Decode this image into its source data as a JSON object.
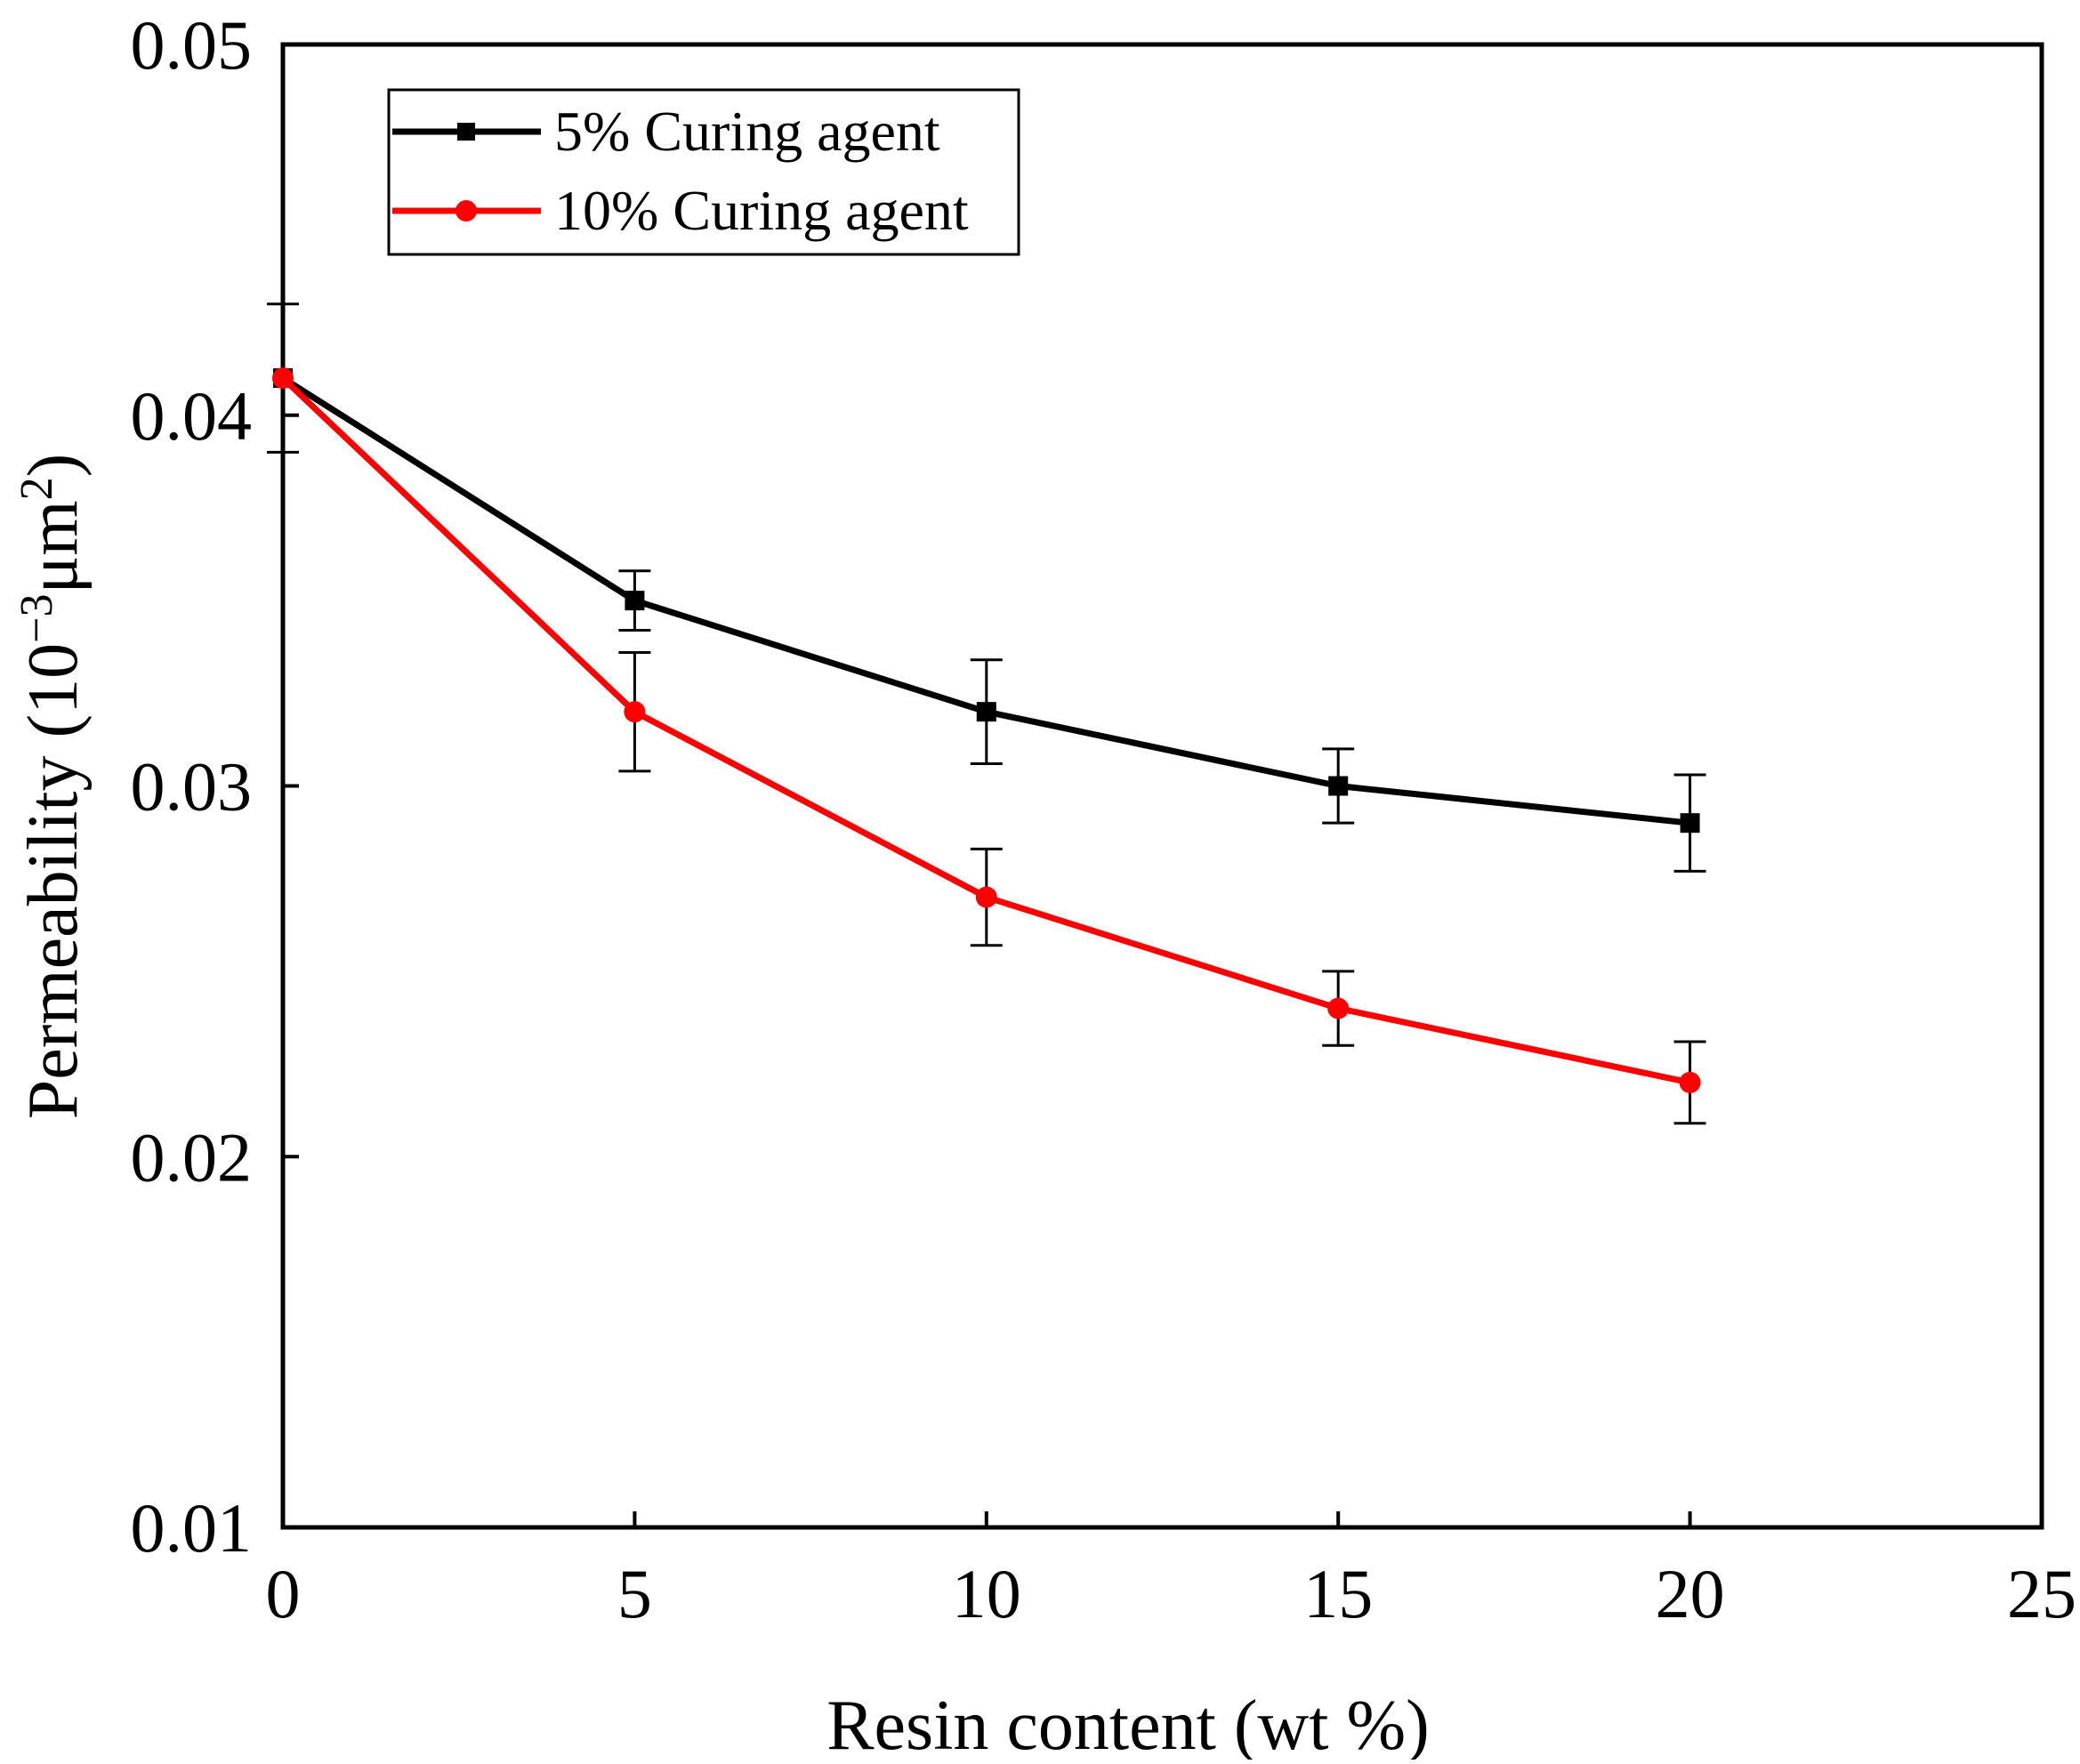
{
  "chart_data": {
    "type": "line",
    "title": "",
    "xlabel": "Resin content (wt %)",
    "ylabel": {
      "main": "Permeability (10",
      "exp1": "−3",
      "mid": "μm",
      "exp2": "2",
      "end": ")"
    },
    "xlim": [
      0,
      25
    ],
    "ylim": [
      0.01,
      0.05
    ],
    "x_ticks": [
      0,
      5,
      10,
      15,
      20,
      25
    ],
    "x_tick_labels": [
      "0",
      "5",
      "10",
      "15",
      "20",
      "25"
    ],
    "y_ticks": [
      0.01,
      0.02,
      0.03,
      0.04,
      0.05
    ],
    "y_tick_labels": [
      "0.01",
      "0.02",
      "0.03",
      "0.04",
      "0.05"
    ],
    "grid": false,
    "legend_position": "top-left",
    "series": [
      {
        "name": "5% Curing agent",
        "color": "#000000",
        "marker": "square",
        "x": [
          0,
          5,
          10,
          15,
          20
        ],
        "y": [
          0.041,
          0.035,
          0.032,
          0.03,
          0.029
        ],
        "error": [
          0.002,
          0.0008,
          0.0014,
          0.001,
          0.0013
        ]
      },
      {
        "name": "10% Curing agent",
        "color": "#ff0000",
        "marker": "circle",
        "x": [
          0,
          5,
          10,
          15,
          20
        ],
        "y": [
          0.041,
          0.032,
          0.027,
          0.024,
          0.022
        ],
        "error": [
          0.0,
          0.0016,
          0.0013,
          0.001,
          0.0011
        ]
      }
    ]
  }
}
